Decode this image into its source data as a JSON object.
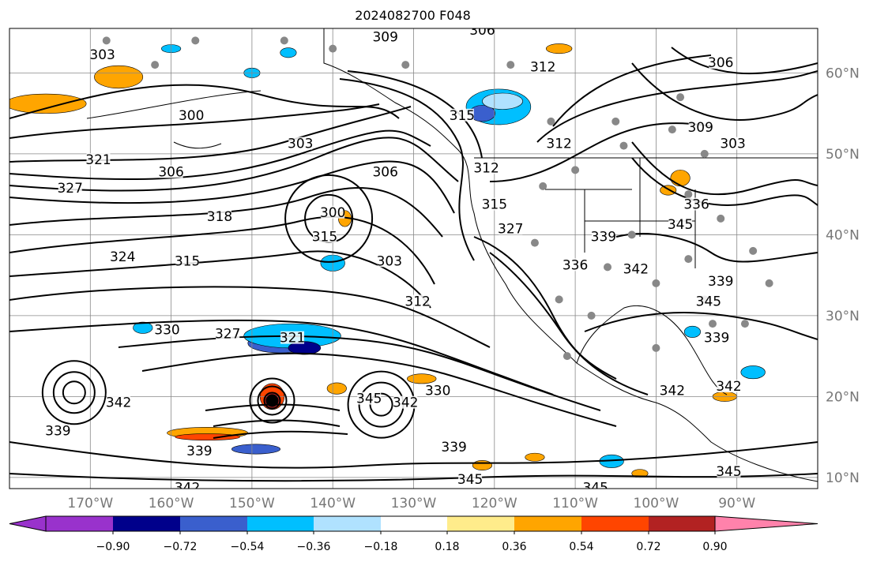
{
  "title": "2024082700 F048",
  "map": {
    "grid_color": "#888888",
    "contour_color": "#000000",
    "land_border_color": "#000000",
    "station_color": "#888888",
    "lat_labels": [
      "60°N",
      "50°N",
      "40°N",
      "30°N",
      "20°N",
      "10°N"
    ],
    "lon_labels": [
      "170°W",
      "160°W",
      "150°W",
      "140°W",
      "130°W",
      "120°W",
      "110°W",
      "100°W",
      "90°W"
    ],
    "contour_labels": [
      {
        "text": "309",
        "lon": -133.5,
        "lat": 64.2
      },
      {
        "text": "306",
        "lon": -121.5,
        "lat": 65.0
      },
      {
        "text": "303",
        "lon": -168.5,
        "lat": 62.0
      },
      {
        "text": "312",
        "lon": -114.0,
        "lat": 60.5
      },
      {
        "text": "306",
        "lon": -92.0,
        "lat": 61.0
      },
      {
        "text": "300",
        "lon": -157.5,
        "lat": 54.5
      },
      {
        "text": "303",
        "lon": -144.0,
        "lat": 51.0
      },
      {
        "text": "315",
        "lon": -124.0,
        "lat": 54.5
      },
      {
        "text": "312",
        "lon": -112.0,
        "lat": 51.0
      },
      {
        "text": "309",
        "lon": -94.5,
        "lat": 53.0
      },
      {
        "text": "303",
        "lon": -90.5,
        "lat": 51.0
      },
      {
        "text": "321",
        "lon": -169.0,
        "lat": 49.0
      },
      {
        "text": "327",
        "lon": -172.5,
        "lat": 45.5
      },
      {
        "text": "306",
        "lon": -160.0,
        "lat": 47.5
      },
      {
        "text": "306",
        "lon": -133.5,
        "lat": 47.5
      },
      {
        "text": "312",
        "lon": -121.0,
        "lat": 48.0
      },
      {
        "text": "300",
        "lon": -140.0,
        "lat": 42.5
      },
      {
        "text": "318",
        "lon": -154.0,
        "lat": 42.0
      },
      {
        "text": "315",
        "lon": -141.0,
        "lat": 39.5
      },
      {
        "text": "315",
        "lon": -120.0,
        "lat": 43.5
      },
      {
        "text": "327",
        "lon": -118.0,
        "lat": 40.5
      },
      {
        "text": "339",
        "lon": -106.5,
        "lat": 39.5
      },
      {
        "text": "336",
        "lon": -95.0,
        "lat": 43.5
      },
      {
        "text": "345",
        "lon": -97.0,
        "lat": 41.0
      },
      {
        "text": "324",
        "lon": -166.0,
        "lat": 37.0
      },
      {
        "text": "315",
        "lon": -158.0,
        "lat": 36.5
      },
      {
        "text": "303",
        "lon": -133.0,
        "lat": 36.5
      },
      {
        "text": "312",
        "lon": -129.5,
        "lat": 31.5
      },
      {
        "text": "336",
        "lon": -110.0,
        "lat": 36.0
      },
      {
        "text": "342",
        "lon": -102.5,
        "lat": 35.5
      },
      {
        "text": "339",
        "lon": -92.0,
        "lat": 34.0
      },
      {
        "text": "345",
        "lon": -93.5,
        "lat": 31.5
      },
      {
        "text": "330",
        "lon": -160.5,
        "lat": 28.0
      },
      {
        "text": "327",
        "lon": -153.0,
        "lat": 27.5
      },
      {
        "text": "321",
        "lon": -145.0,
        "lat": 27.0
      },
      {
        "text": "339",
        "lon": -92.5,
        "lat": 27.0
      },
      {
        "text": "342",
        "lon": -98.0,
        "lat": 20.5
      },
      {
        "text": "342",
        "lon": -91.0,
        "lat": 21.0
      },
      {
        "text": "345",
        "lon": -135.5,
        "lat": 19.5
      },
      {
        "text": "342",
        "lon": -131.0,
        "lat": 19.0
      },
      {
        "text": "330",
        "lon": -127.0,
        "lat": 20.5
      },
      {
        "text": "342",
        "lon": -166.5,
        "lat": 19.0
      },
      {
        "text": "339",
        "lon": -174.0,
        "lat": 15.5
      },
      {
        "text": "339",
        "lon": -125.0,
        "lat": 13.5
      },
      {
        "text": "339",
        "lon": -156.5,
        "lat": 13.0
      },
      {
        "text": "345",
        "lon": -123.0,
        "lat": 9.5
      },
      {
        "text": "342",
        "lon": -158.0,
        "lat": 8.5
      },
      {
        "text": "345",
        "lon": -107.5,
        "lat": 8.5
      },
      {
        "text": "345",
        "lon": -91.0,
        "lat": 10.5
      }
    ]
  },
  "colorbar": {
    "labels": [
      "-0.90",
      "-0.72",
      "-0.54",
      "-0.36",
      "-0.18",
      "0.18",
      "0.36",
      "0.54",
      "0.72",
      "0.90"
    ],
    "colors": [
      "#9932cc",
      "#00008b",
      "#3a5fcd",
      "#00bfff",
      "#b0e2ff",
      "#ffffff",
      "#ffec8b",
      "#ffa500",
      "#ff4500",
      "#b22222",
      "#ff82ab"
    ]
  }
}
